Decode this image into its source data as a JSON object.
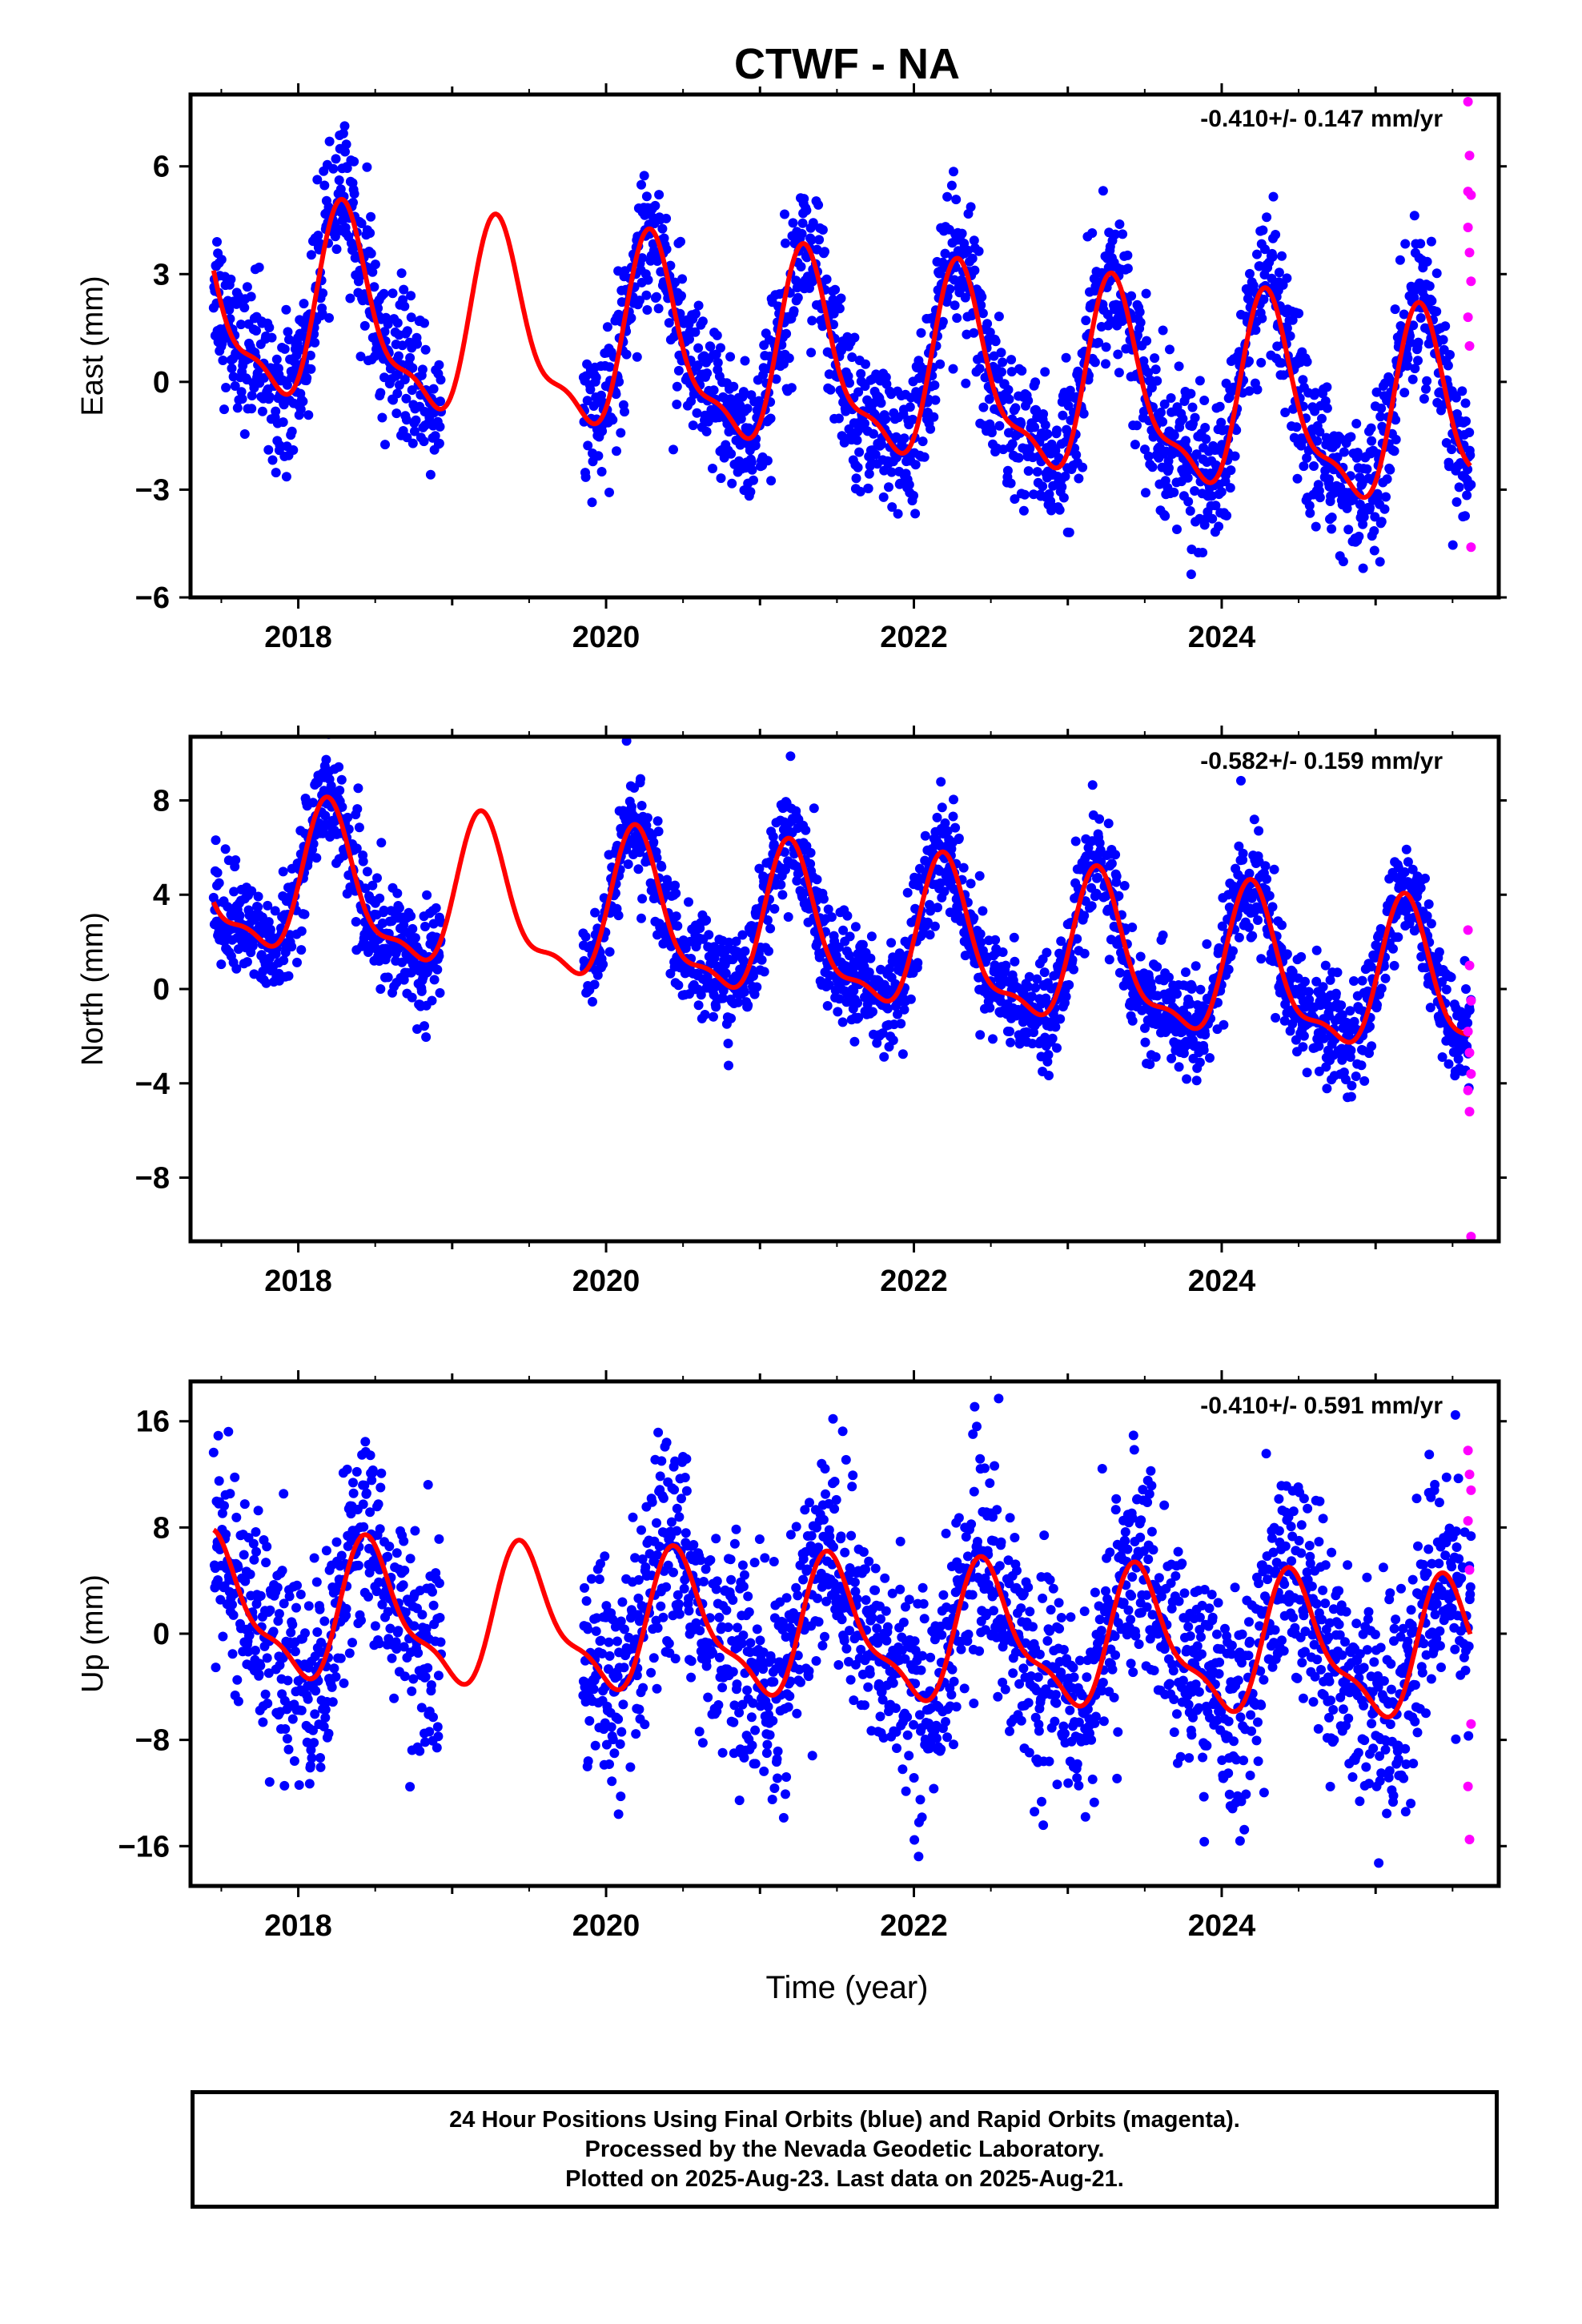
{
  "title": "CTWF - NA",
  "footer": {
    "line1": "24 Hour Positions Using Final Orbits (blue) and Rapid Orbits (magenta).",
    "line2": "Processed by the Nevada Geodetic Laboratory.",
    "line3": "Plotted on 2025-Aug-23. Last data on 2025-Aug-21."
  },
  "colors": {
    "final": "#0000ff",
    "rapid": "#ff00ff",
    "model": "#ff0000",
    "axes": "#000000"
  },
  "chart_data": [
    {
      "type": "scatter",
      "ylabel": "East (mm)",
      "rate_label": "-0.410+/- 0.147 mm/yr",
      "xlim": [
        2017.3,
        2025.8
      ],
      "ylim": [
        -6,
        8
      ],
      "xticks": [
        2018,
        2020,
        2022,
        2024
      ],
      "yticks": [
        -6,
        -3,
        0,
        3,
        6
      ],
      "model": {
        "offset": 0.45,
        "trend": -0.41,
        "amp": 2.5,
        "phase": 1.95,
        "start": 2017.45,
        "end": 2025.62
      },
      "final_scatter": {
        "sigma": 1.0,
        "gaps": [
          [
            2018.93,
            2019.85
          ]
        ]
      },
      "rapid_points": {
        "x": [
          2025.6,
          2025.61,
          2025.62,
          2025.6,
          2025.61,
          2025.62,
          2025.6,
          2025.61,
          2025.62,
          2025.6
        ],
        "y": [
          7.8,
          6.3,
          5.2,
          4.3,
          3.6,
          2.8,
          1.8,
          1.0,
          -4.6,
          5.3
        ]
      },
      "grid": false
    },
    {
      "type": "scatter",
      "ylabel": "North (mm)",
      "rate_label": "-0.582+/- 0.159 mm/yr",
      "xlim": [
        2017.3,
        2025.8
      ],
      "ylim": [
        -10.7,
        10.7
      ],
      "xticks": [
        2018,
        2020,
        2022,
        2024
      ],
      "yticks": [
        -8,
        -4,
        0,
        4,
        8
      ],
      "model": {
        "offset": 2.2,
        "trend": -0.582,
        "amp": 3.0,
        "phase": 1.3,
        "start": 2017.45,
        "end": 2025.62
      },
      "final_scatter": {
        "sigma": 1.1,
        "gaps": [
          [
            2018.93,
            2019.85
          ]
        ]
      },
      "rapid_points": {
        "x": [
          2025.6,
          2025.61,
          2025.62,
          2025.6,
          2025.61,
          2025.62,
          2025.6,
          2025.61,
          2025.62
        ],
        "y": [
          2.5,
          1.0,
          -0.5,
          -1.8,
          -2.7,
          -3.6,
          -4.3,
          -5.2,
          -10.5
        ]
      },
      "grid": false
    },
    {
      "type": "scatter",
      "ylabel": "Up (mm)",
      "rate_label": "-0.410+/- 0.591 mm/yr",
      "xlim": [
        2017.3,
        2025.8
      ],
      "ylim": [
        -19,
        19
      ],
      "xticks": [
        2018,
        2020,
        2022,
        2024
      ],
      "yticks": [
        -16,
        -8,
        0,
        8,
        16
      ],
      "model": {
        "offset": 0.0,
        "trend": -0.41,
        "amp": 4.8,
        "phase": 3.0,
        "start": 2017.45,
        "end": 2025.62
      },
      "final_scatter": {
        "sigma": 4.0,
        "gaps": [
          [
            2018.93,
            2019.85
          ]
        ]
      },
      "rapid_points": {
        "x": [
          2025.6,
          2025.61,
          2025.62,
          2025.6,
          2025.61,
          2025.62,
          2025.6,
          2025.61
        ],
        "y": [
          13.8,
          12.0,
          10.8,
          8.5,
          4.8,
          -6.8,
          -11.5,
          -15.5
        ]
      },
      "grid": false
    }
  ],
  "xlabel": "Time (year)"
}
